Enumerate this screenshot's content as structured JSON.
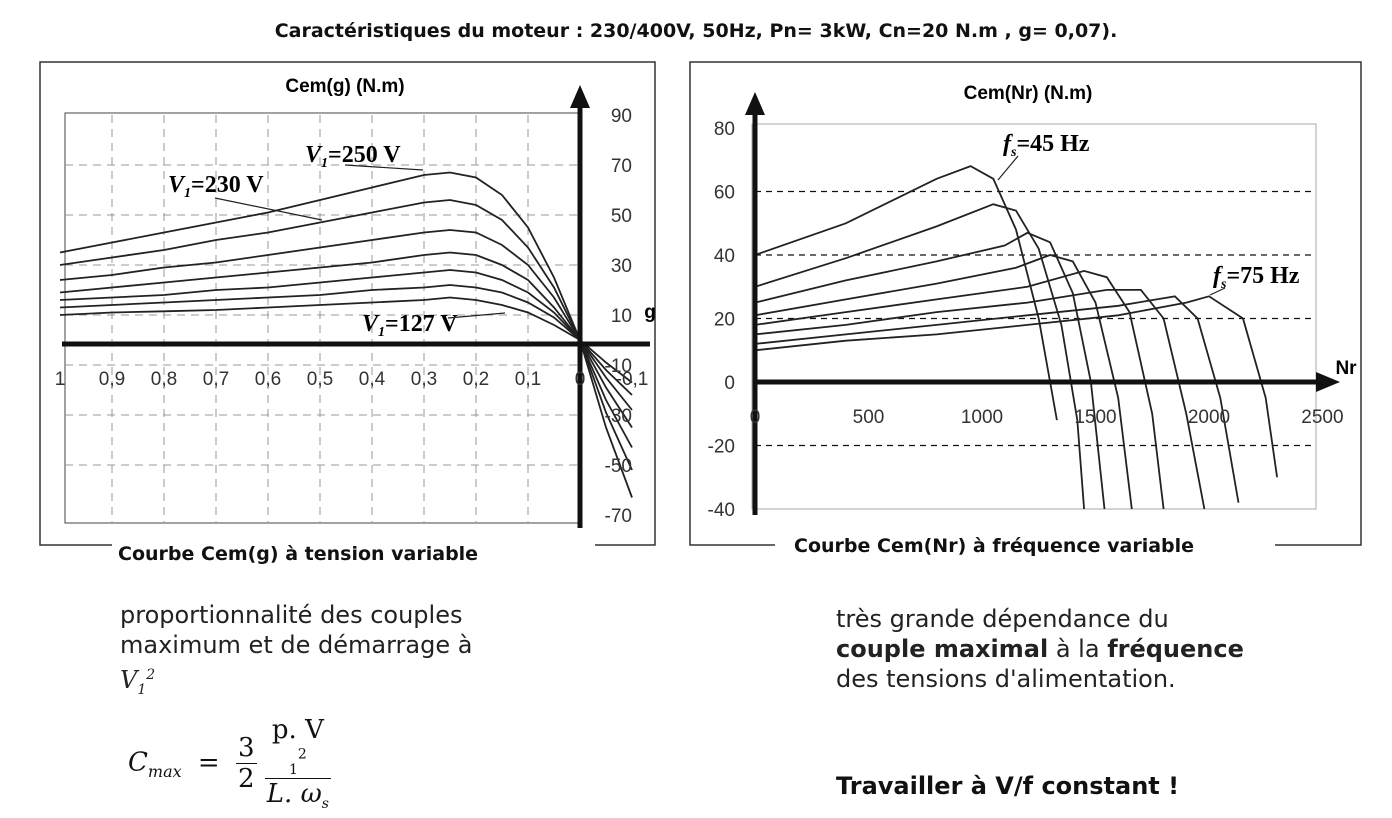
{
  "header": "Caractéristiques du moteur : 230/400V, 50Hz, Pn= 3kW, Cn=20 N.m , g= 0,07).",
  "left_caption": "Courbe Cem(g) à tension variable",
  "right_caption": "Courbe Cem(Nr) à fréquence variable",
  "left_note": {
    "text": "proportionnalité des couples maximum et de démarrage à",
    "symbol": "V",
    "sub": "1",
    "sup": "2"
  },
  "formula": {
    "lhs": "C",
    "lhs_sub": "max",
    "eq": "=",
    "num1": "3",
    "den1": "2",
    "num2": "p. V",
    "den2": "L. ω",
    "den2_sub": "s"
  },
  "right_note": {
    "part1": "très grande dépendance du",
    "bold1": "couple maximal",
    "part2": "à la",
    "bold2": "fréquence",
    "part3": "des tensions d'alimentation."
  },
  "conclusion": "Travailler à V/f constant !",
  "chart_data": [
    {
      "type": "line",
      "title": "Cem(g)  (N.m)",
      "xlabel": "g",
      "x_reversed": true,
      "xlim": [
        -0.1,
        1.0
      ],
      "ylim": [
        -70,
        90
      ],
      "x_tick_labels": [
        "1",
        "0,9",
        "0,8",
        "0,7",
        "0,6",
        "0,5",
        "0,4",
        "0,3",
        "0,2",
        "0,1",
        "0",
        "-0,1"
      ],
      "y_tick_labels": [
        "90",
        "70",
        "50",
        "30",
        "10",
        "-10",
        "-30",
        "-50",
        "-70"
      ],
      "annotations": [
        "V1=250 V",
        "V1=230 V",
        "V1=127 V"
      ],
      "series": [
        {
          "x": [
            1.0,
            0.9,
            0.8,
            0.7,
            0.6,
            0.5,
            0.4,
            0.3,
            0.25,
            0.2,
            0.15,
            0.1,
            0.05,
            0.0,
            -0.05,
            -0.1
          ],
          "values": [
            35,
            39,
            43,
            47,
            51,
            56,
            61,
            66,
            67,
            65,
            58,
            45,
            25,
            0,
            -35,
            -63
          ]
        },
        {
          "x": [
            1.0,
            0.9,
            0.8,
            0.7,
            0.6,
            0.5,
            0.4,
            0.3,
            0.25,
            0.2,
            0.15,
            0.1,
            0.05,
            0.0,
            -0.05,
            -0.1
          ],
          "values": [
            30,
            33,
            36,
            40,
            43,
            47,
            51,
            55,
            56,
            54,
            48,
            37,
            21,
            0,
            -29,
            -52
          ]
        },
        {
          "x": [
            1.0,
            0.9,
            0.8,
            0.7,
            0.6,
            0.5,
            0.4,
            0.3,
            0.25,
            0.2,
            0.15,
            0.1,
            0.05,
            0.0,
            -0.05,
            -0.1
          ],
          "values": [
            24,
            26,
            29,
            31,
            34,
            37,
            40,
            43,
            44,
            43,
            38,
            30,
            17,
            0,
            -24,
            -43
          ]
        },
        {
          "x": [
            1.0,
            0.9,
            0.8,
            0.7,
            0.6,
            0.5,
            0.4,
            0.3,
            0.25,
            0.2,
            0.15,
            0.1,
            0.05,
            0.0,
            -0.05,
            -0.1
          ],
          "values": [
            19,
            21,
            23,
            25,
            27,
            29,
            31,
            34,
            35,
            34,
            30,
            24,
            13,
            0,
            -19,
            -35
          ]
        },
        {
          "x": [
            1.0,
            0.9,
            0.8,
            0.7,
            0.6,
            0.5,
            0.4,
            0.3,
            0.25,
            0.2,
            0.15,
            0.1,
            0.05,
            0.0,
            -0.05,
            -0.1
          ],
          "values": [
            16,
            17,
            18,
            20,
            21,
            23,
            25,
            27,
            28,
            27,
            24,
            19,
            11,
            0,
            -15,
            -28
          ]
        },
        {
          "x": [
            1.0,
            0.9,
            0.8,
            0.7,
            0.6,
            0.5,
            0.4,
            0.3,
            0.25,
            0.2,
            0.15,
            0.1,
            0.05,
            0.0,
            -0.05,
            -0.1
          ],
          "values": [
            13,
            14,
            15,
            16,
            17,
            18,
            20,
            21,
            22,
            21,
            19,
            15,
            9,
            0,
            -12,
            -22
          ]
        },
        {
          "x": [
            1.0,
            0.9,
            0.8,
            0.7,
            0.6,
            0.5,
            0.4,
            0.3,
            0.25,
            0.2,
            0.15,
            0.1,
            0.05,
            0.0,
            -0.05,
            -0.1
          ],
          "values": [
            10,
            11,
            11.5,
            12,
            13,
            14,
            15,
            16,
            17,
            16,
            14,
            11,
            6,
            0,
            -9,
            -17
          ]
        }
      ]
    },
    {
      "type": "line",
      "title": "Cem(Nr)  (N.m)",
      "xlabel": "Nr",
      "xlim": [
        0,
        2500
      ],
      "ylim": [
        -40,
        80
      ],
      "x_tick_labels": [
        "0",
        "500",
        "1000",
        "1500",
        "2000",
        "2500"
      ],
      "y_tick_labels": [
        "80",
        "60",
        "40",
        "20",
        "0",
        "-20",
        "-40"
      ],
      "annotations": [
        "fs=45 Hz",
        "fs=75 Hz"
      ],
      "series": [
        {
          "x": [
            0,
            400,
            800,
            950,
            1050,
            1150,
            1250,
            1300,
            1330
          ],
          "values": [
            40,
            50,
            64,
            68,
            64,
            48,
            20,
            0,
            -12
          ]
        },
        {
          "x": [
            0,
            400,
            800,
            1050,
            1150,
            1250,
            1350,
            1420,
            1450
          ],
          "values": [
            30,
            39,
            49,
            56,
            54,
            42,
            18,
            -12,
            -40
          ]
        },
        {
          "x": [
            0,
            400,
            800,
            1100,
            1200,
            1300,
            1400,
            1480,
            1540
          ],
          "values": [
            25,
            32,
            38,
            43,
            47,
            44,
            28,
            0,
            -40
          ]
        },
        {
          "x": [
            0,
            400,
            800,
            1150,
            1300,
            1400,
            1500,
            1600,
            1660
          ],
          "values": [
            21,
            26,
            31,
            36,
            40,
            38,
            25,
            -5,
            -40
          ]
        },
        {
          "x": [
            0,
            400,
            800,
            1200,
            1450,
            1550,
            1650,
            1750,
            1800
          ],
          "values": [
            18,
            22,
            26,
            30,
            35,
            33,
            22,
            -10,
            -40
          ]
        },
        {
          "x": [
            0,
            400,
            800,
            1200,
            1550,
            1700,
            1800,
            1900,
            1980
          ],
          "values": [
            15,
            18,
            22,
            25,
            29,
            29,
            20,
            -10,
            -40
          ]
        },
        {
          "x": [
            0,
            400,
            800,
            1200,
            1600,
            1850,
            1950,
            2050,
            2130
          ],
          "values": [
            12,
            15,
            18,
            21,
            24,
            27,
            20,
            -5,
            -38
          ]
        },
        {
          "x": [
            0,
            400,
            800,
            1200,
            1600,
            1900,
            2000,
            2150,
            2250,
            2300
          ],
          "values": [
            10,
            13,
            15,
            18,
            21,
            25,
            27,
            20,
            -5,
            -30
          ]
        }
      ]
    }
  ]
}
